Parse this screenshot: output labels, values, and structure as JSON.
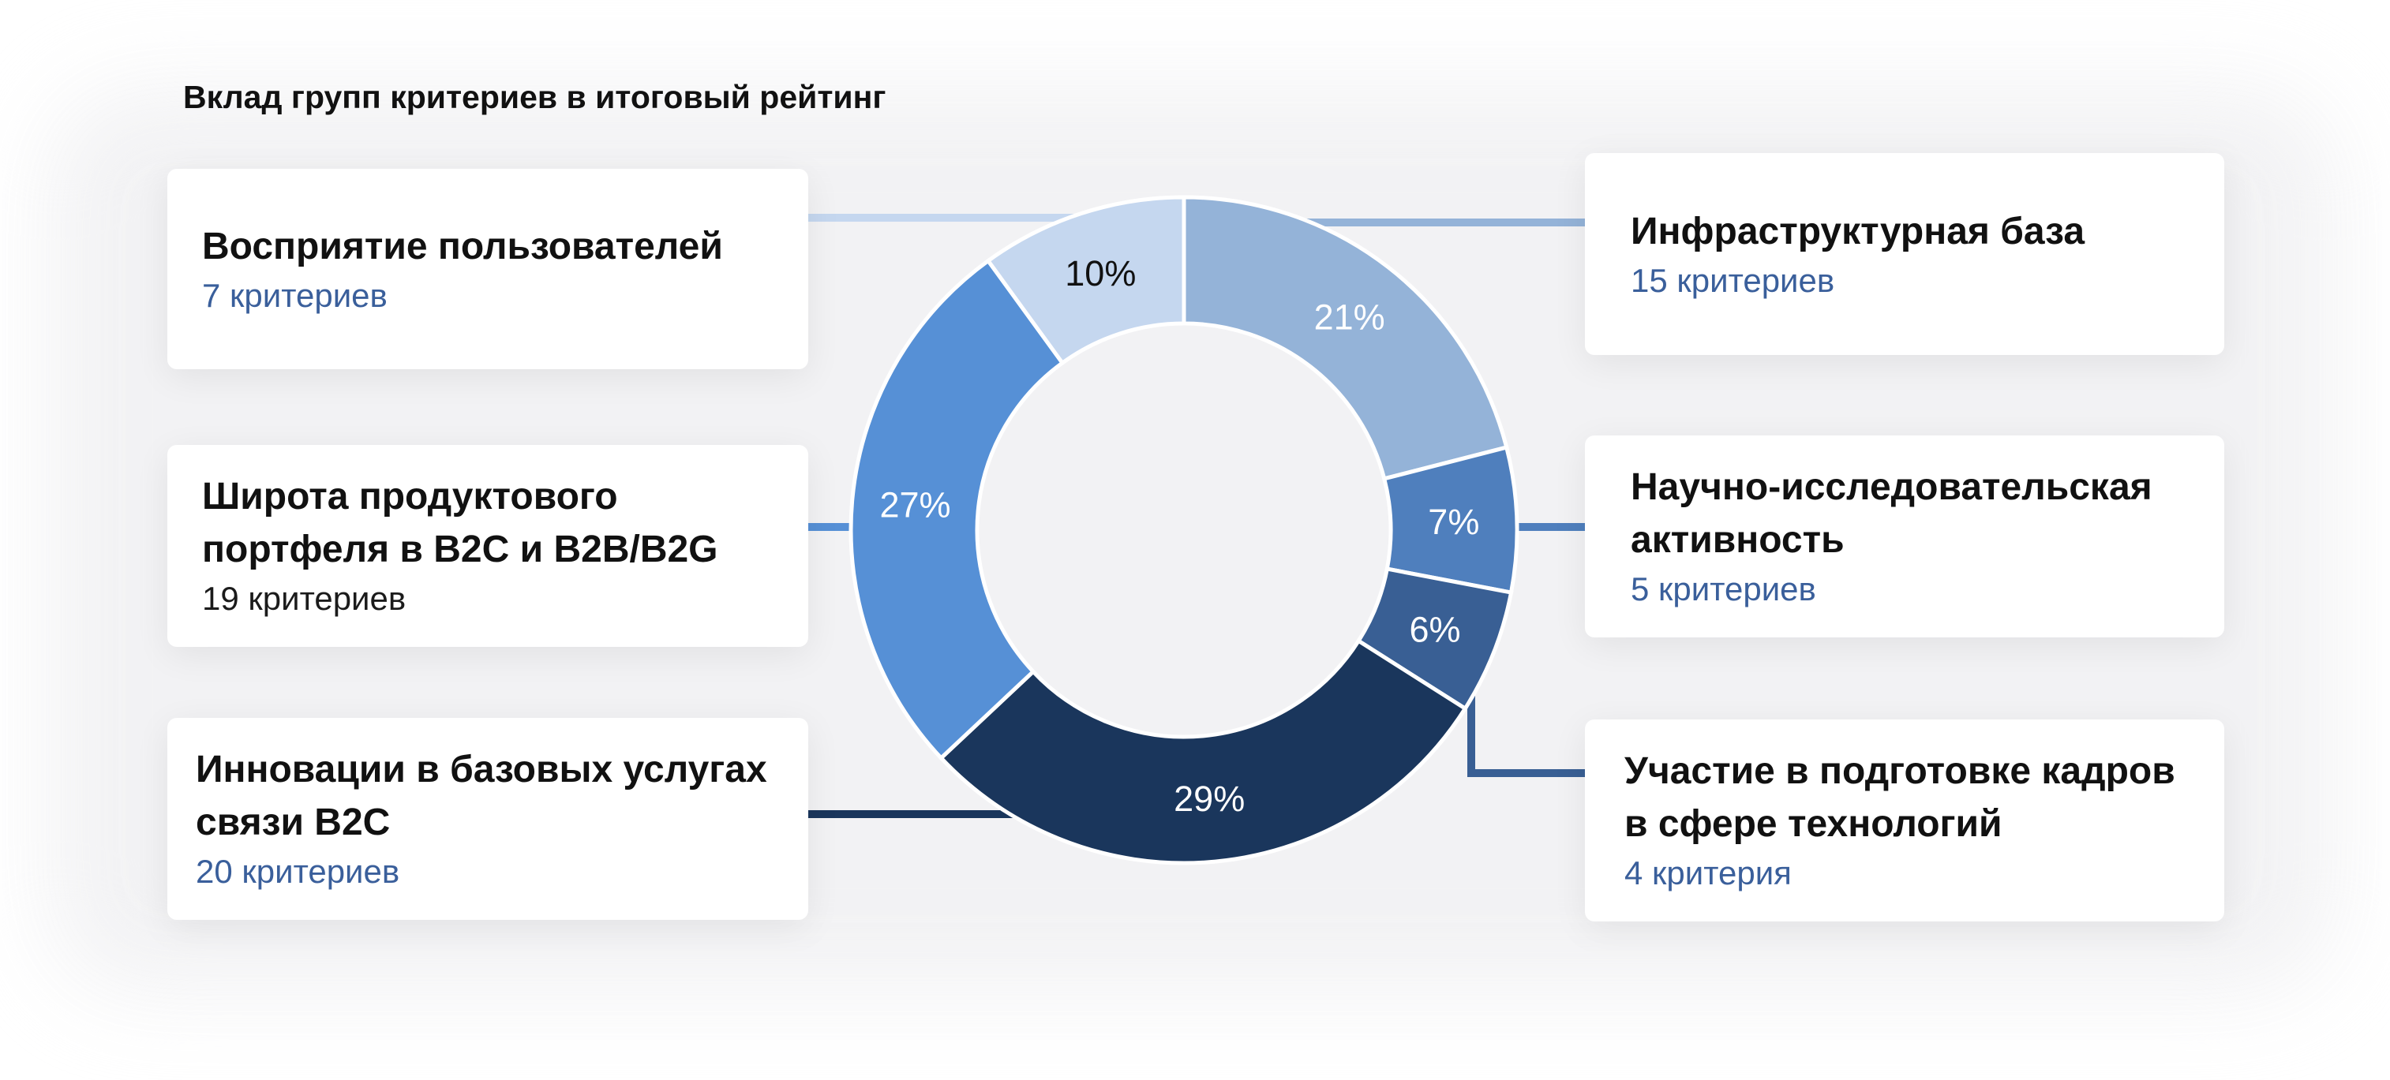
{
  "title": "Вклад групп критериев в итоговый рейтинг",
  "colors": {
    "user_perception": "#c5d7ef",
    "infrastructure": "#94b3d8",
    "research": "#4f7fbd",
    "training": "#395f94",
    "innovation": "#1a365c",
    "portfolio": "#5690d6",
    "label_light": "#ffffff",
    "label_dark": "#111111",
    "count_text": "#3a5f9b"
  },
  "groups": {
    "user_perception": {
      "title_lines": [
        "Восприятие пользователей"
      ],
      "count": "7 критериев"
    },
    "portfolio": {
      "title_lines": [
        "Широта продуктового",
        "портфеля в B2C и B2B/B2G"
      ],
      "count": "19 критериев"
    },
    "innovation": {
      "title_lines": [
        "Инновации в базовых услугах",
        "связи B2C"
      ],
      "count": "20 критериев"
    },
    "infrastructure": {
      "title_lines": [
        "Инфраструктурная база"
      ],
      "count": "15 критериев"
    },
    "research": {
      "title_lines": [
        "Научно-исследовательская",
        "активность"
      ],
      "count": "5 критериев"
    },
    "training": {
      "title_lines": [
        "Участие в подготовке кадров",
        "в сфере технологий"
      ],
      "count": "4 критерия"
    }
  },
  "chart_data": {
    "type": "pie",
    "variant": "donut",
    "title": "Вклад групп критериев в итоговый рейтинг",
    "start": "top, clockwise",
    "slices": [
      {
        "key": "infrastructure",
        "value": 21,
        "label": "21%",
        "color": "#94b3d8"
      },
      {
        "key": "research",
        "value": 7,
        "label": "7%",
        "color": "#4f7fbd"
      },
      {
        "key": "training",
        "value": 6,
        "label": "6%",
        "color": "#395f94"
      },
      {
        "key": "innovation",
        "value": 29,
        "label": "29%",
        "color": "#1a365c"
      },
      {
        "key": "portfolio",
        "value": 27,
        "label": "27%",
        "color": "#5690d6"
      },
      {
        "key": "user_perception",
        "value": 10,
        "label": "10%",
        "color": "#c5d7ef"
      }
    ]
  }
}
